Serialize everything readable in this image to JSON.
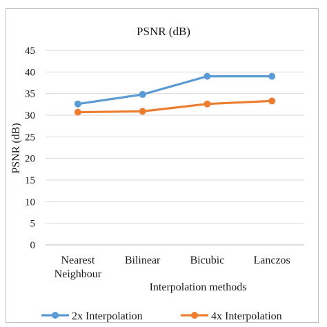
{
  "chart_data": {
    "type": "line",
    "title": "PSNR (dB)",
    "xlabel": "Interpolation methods",
    "ylabel": "PSNR (dB)",
    "categories": [
      [
        "Nearest",
        "Neighbour"
      ],
      [
        "Bilinear"
      ],
      [
        "Bicubic"
      ],
      [
        "Lanczos"
      ]
    ],
    "ylim": [
      0,
      45
    ],
    "yticks": [
      0,
      5,
      10,
      15,
      20,
      25,
      30,
      35,
      40,
      45
    ],
    "grid": true,
    "legend_position": "bottom",
    "series": [
      {
        "name": "2x Interpolation",
        "color": "#5b9bd5",
        "values": [
          32.6,
          34.8,
          39.0,
          39.0
        ]
      },
      {
        "name": "4x Interpolation",
        "color": "#ed7d31",
        "values": [
          30.7,
          30.9,
          32.6,
          33.3
        ]
      }
    ]
  }
}
